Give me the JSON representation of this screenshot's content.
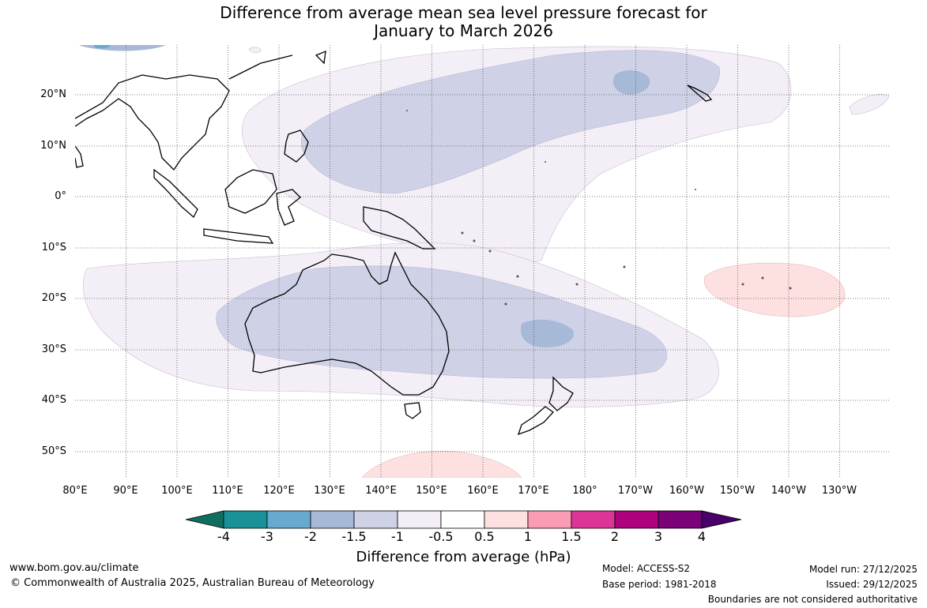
{
  "title_line1": "Difference from average mean sea level pressure forecast for",
  "title_line2": "January to March 2026",
  "lat_labels": [
    "20°N",
    "10°N",
    "0°",
    "10°S",
    "20°S",
    "30°S",
    "40°S",
    "50°S"
  ],
  "lon_labels": [
    "80°E",
    "90°E",
    "100°E",
    "110°E",
    "120°E",
    "130°E",
    "140°E",
    "150°E",
    "160°E",
    "170°E",
    "180°",
    "170°W",
    "160°W",
    "150°W",
    "140°W",
    "130°W"
  ],
  "colorbar": {
    "ticks": [
      "-4",
      "-3",
      "-2",
      "-1.5",
      "-1",
      "-0.5",
      "0.5",
      "1",
      "1.5",
      "2",
      "3",
      "4"
    ],
    "colors": [
      "#0f6f5f",
      "#1a9099",
      "#67a9cf",
      "#a6b9d6",
      "#cfd2e6",
      "#f4eef6",
      "#ffffff",
      "#fde0e0",
      "#f99cb4",
      "#dd3497",
      "#ae017e",
      "#7a0177",
      "#49006a"
    ],
    "label": "Difference from average (hPa)"
  },
  "footer": {
    "website": "www.bom.gov.au/climate",
    "copyright": "© Commonwealth of Australia 2025, Australian Bureau of Meteorology",
    "model": "Model: ACCESS-S2",
    "base_period": "Base period: 1981-2018",
    "model_run": "Model run: 27/12/2025",
    "issued": "Issued: 29/12/2025",
    "disclaimer": "Boundaries are not considered authoritative"
  }
}
